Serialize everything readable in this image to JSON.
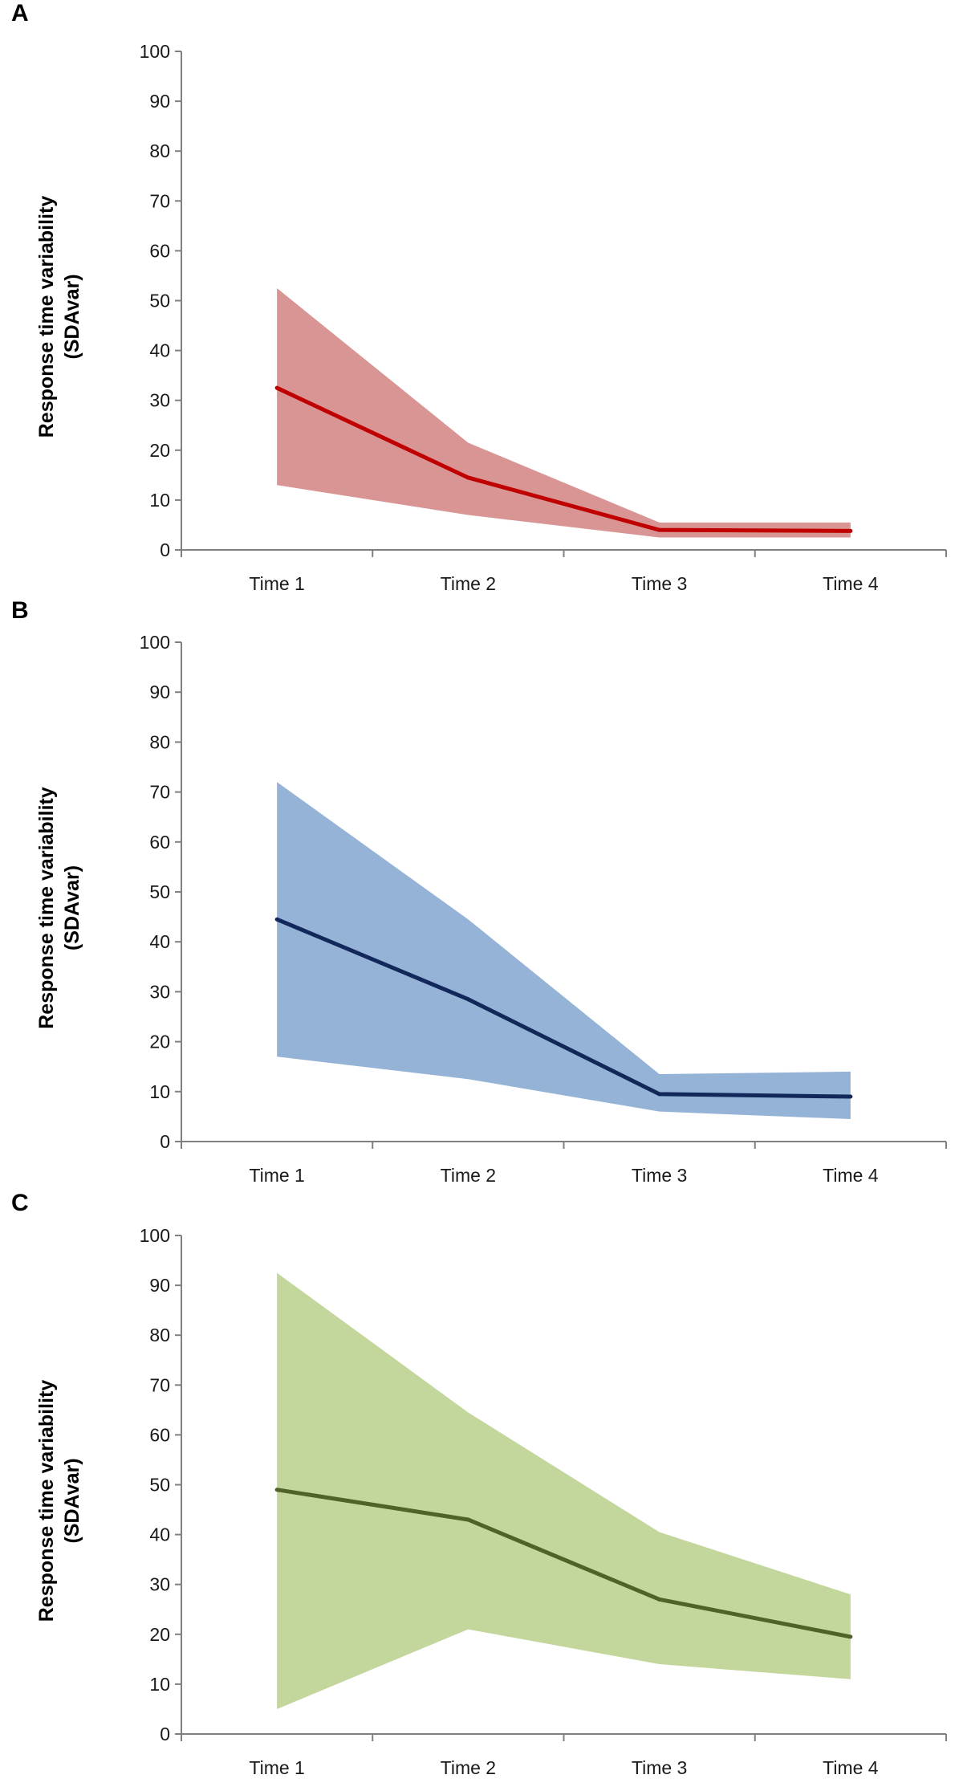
{
  "chart_data": [
    {
      "type": "area",
      "panel_label": "A",
      "categories": [
        "Time 1",
        "Time 2",
        "Time 3",
        "Time 4"
      ],
      "ylabel": [
        "Response time variability",
        "(SDAvar)"
      ],
      "ylim": [
        0,
        100
      ],
      "yticks": [
        0,
        10,
        20,
        30,
        40,
        50,
        60,
        70,
        80,
        90,
        100
      ],
      "grid": false,
      "mean": [
        32.5,
        14.5,
        4,
        3.8
      ],
      "upper": [
        52.5,
        21.5,
        5.5,
        5.5
      ],
      "lower": [
        13,
        7,
        2.5,
        2.5
      ],
      "line_color": "#c00000",
      "band_color": "#d99594"
    },
    {
      "type": "area",
      "panel_label": "B",
      "categories": [
        "Time 1",
        "Time 2",
        "Time 3",
        "Time 4"
      ],
      "ylabel": [
        "Response time variability",
        "(SDAvar)"
      ],
      "ylim": [
        0,
        100
      ],
      "yticks": [
        0,
        10,
        20,
        30,
        40,
        50,
        60,
        70,
        80,
        90,
        100
      ],
      "grid": false,
      "mean": [
        44.5,
        28.5,
        9.5,
        9
      ],
      "upper": [
        72,
        44.5,
        13.5,
        14
      ],
      "lower": [
        17,
        12.5,
        6,
        4.5
      ],
      "line_color": "#12275a",
      "band_color": "#95b3d7"
    },
    {
      "type": "area",
      "panel_label": "C",
      "categories": [
        "Time 1",
        "Time 2",
        "Time 3",
        "Time 4"
      ],
      "ylabel": [
        "Response time variability",
        "(SDAvar)"
      ],
      "ylim": [
        0,
        100
      ],
      "yticks": [
        0,
        10,
        20,
        30,
        40,
        50,
        60,
        70,
        80,
        90,
        100
      ],
      "grid": false,
      "mean": [
        49,
        43,
        27,
        19.5
      ],
      "upper": [
        92.5,
        64.5,
        40.5,
        28
      ],
      "lower": [
        5,
        21,
        14,
        11
      ],
      "line_color": "#4f6228",
      "band_color": "#c3d69b"
    }
  ]
}
